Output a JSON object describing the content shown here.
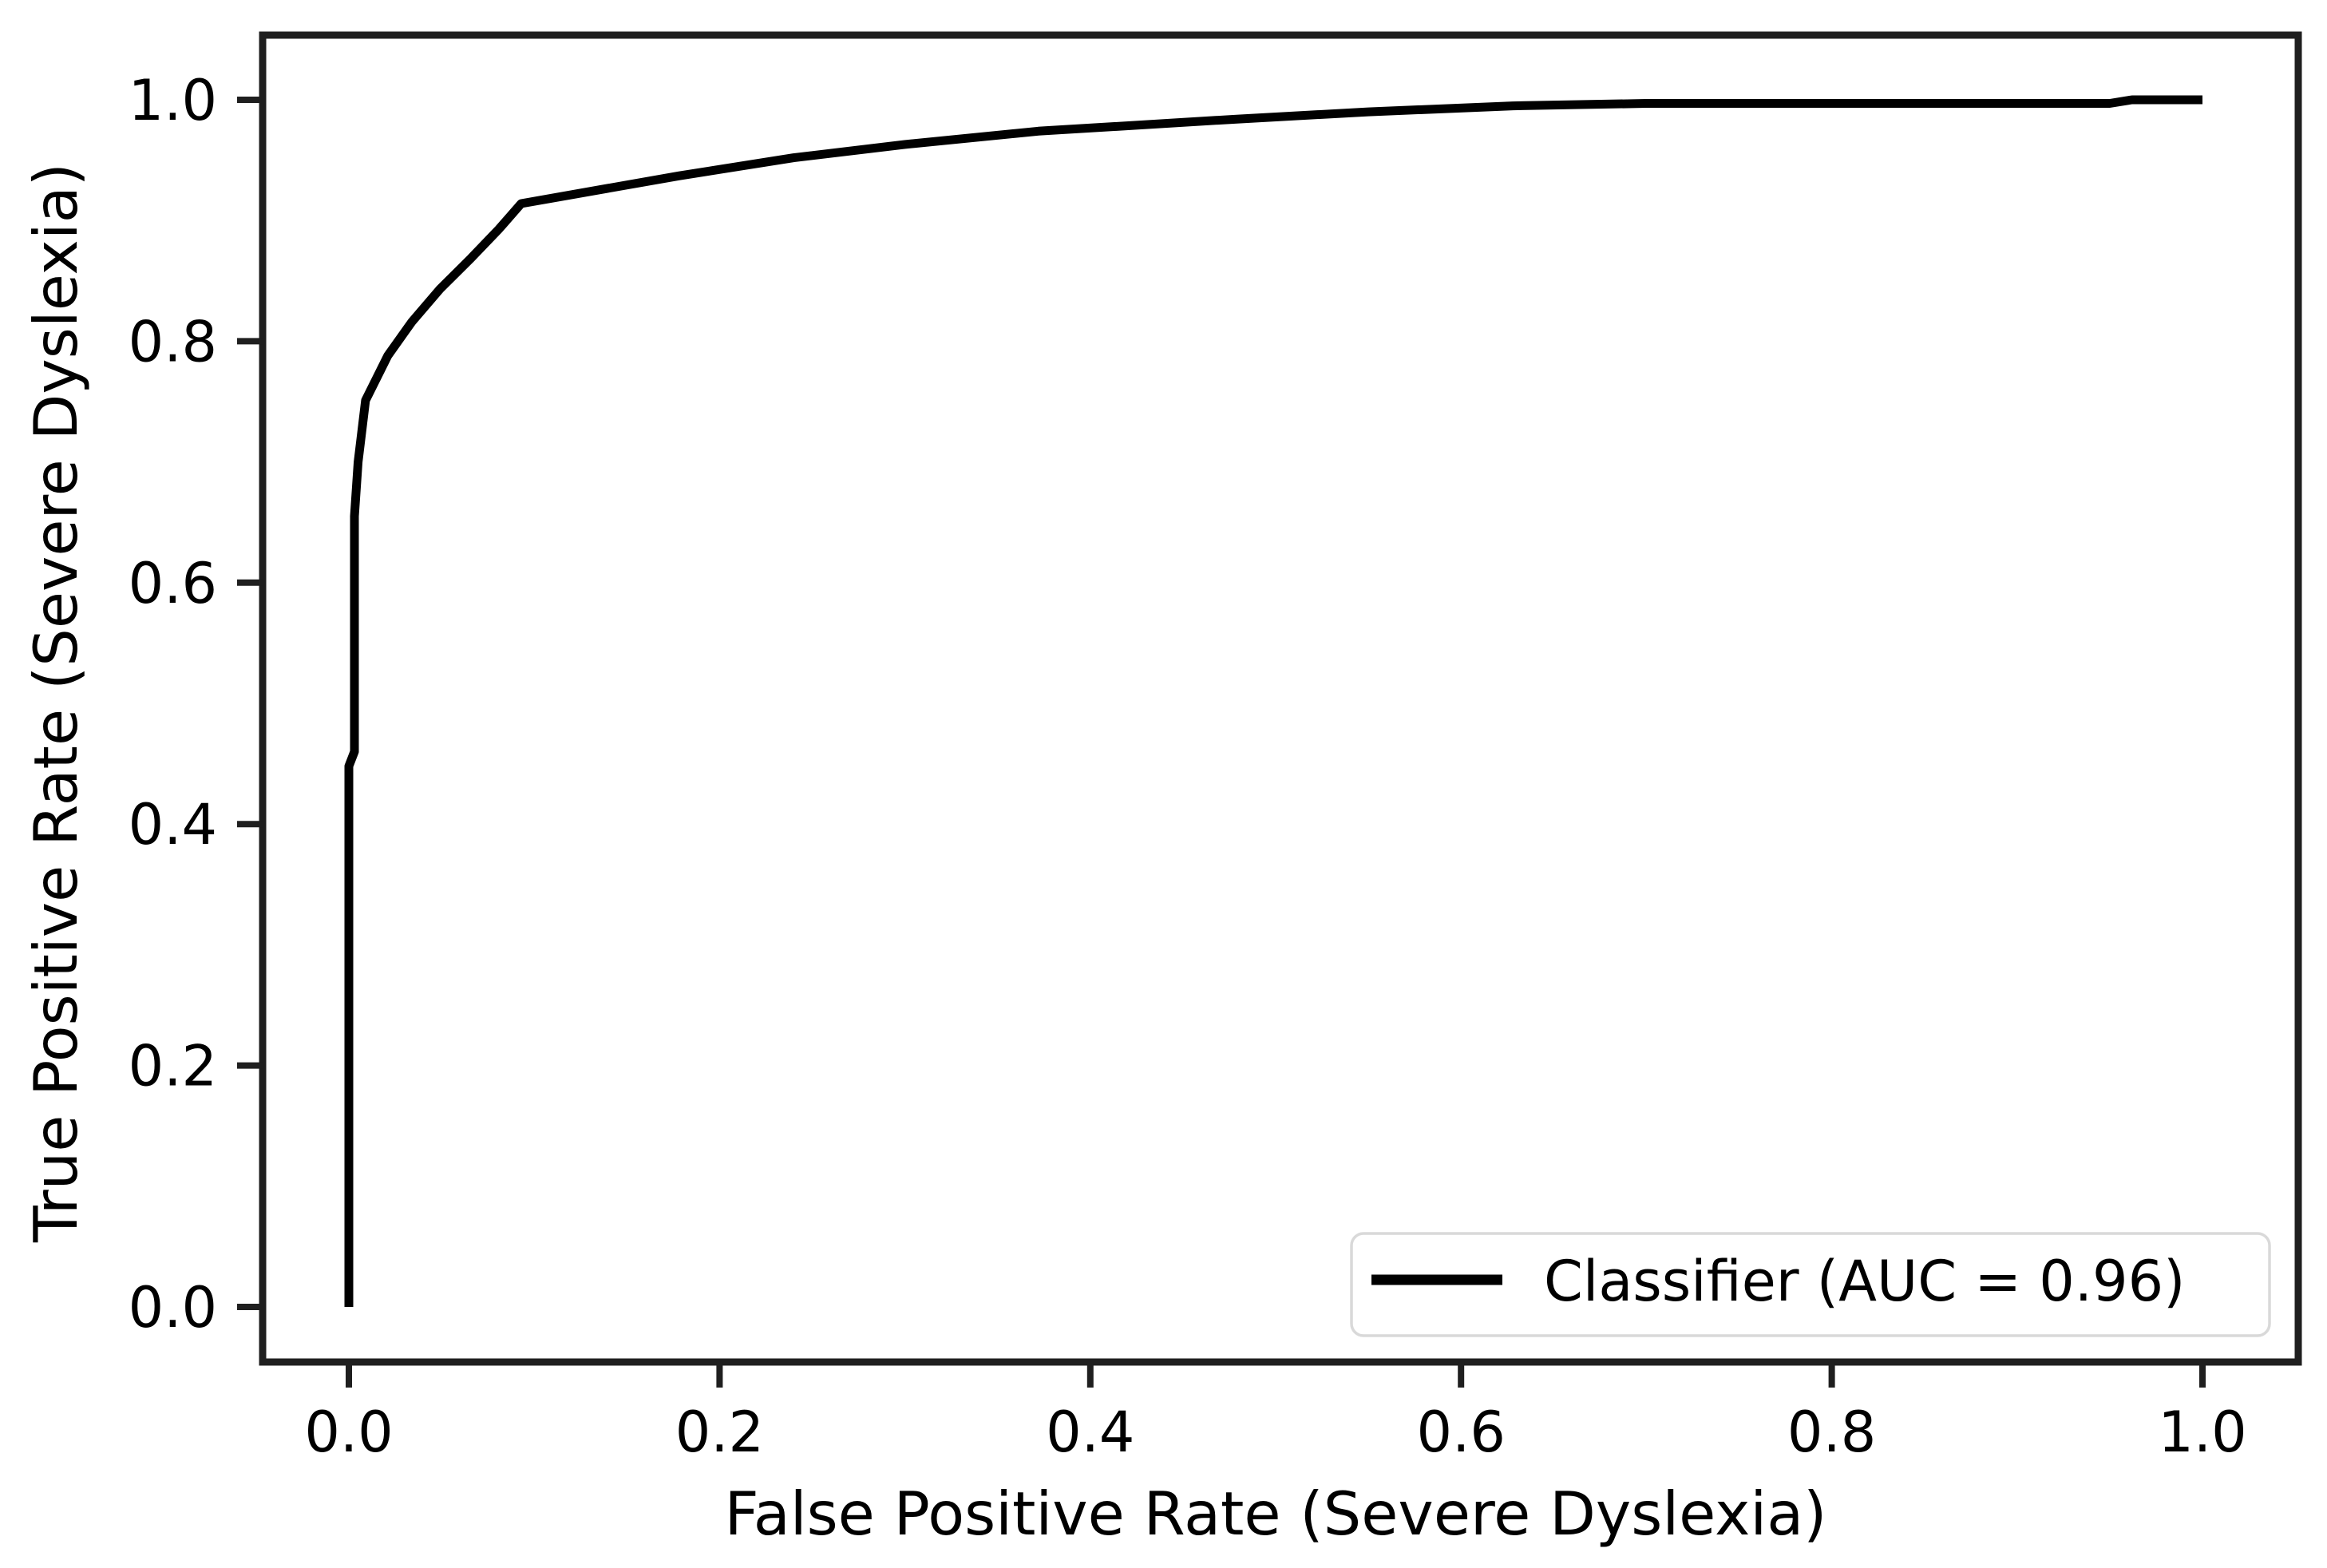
{
  "figure": {
    "background_color": "#ffffff",
    "spine_color": "#1f1f1f",
    "text_color": "#000000",
    "curve_color": "#000000",
    "legend": {
      "label": "Classifier (AUC = 0.96)",
      "auc": "0.96",
      "position": "lower right",
      "border_color": "#d9d9d9",
      "background_color": "#ffffff",
      "swatch_color": "#000000"
    }
  },
  "chart_data": {
    "type": "line",
    "title": "",
    "xlabel": "False Positive Rate (Severe Dyslexia)",
    "ylabel": "True Positive Rate (Severe Dyslexia)",
    "xlim": [
      0.0,
      1.0
    ],
    "ylim": [
      0.0,
      1.0
    ],
    "x_ticks": [
      "0.0",
      "0.2",
      "0.4",
      "0.6",
      "0.8",
      "1.0"
    ],
    "y_ticks": [
      "0.0",
      "0.2",
      "0.4",
      "0.6",
      "0.8",
      "1.0"
    ],
    "grid": false,
    "legend_position": "lower right",
    "series": [
      {
        "name": "Classifier (AUC = 0.96)",
        "color": "#000000",
        "points": [
          [
            0.0,
            0.0
          ],
          [
            0.0,
            0.448
          ],
          [
            0.003,
            0.46
          ],
          [
            0.003,
            0.655
          ],
          [
            0.005,
            0.7
          ],
          [
            0.009,
            0.751
          ],
          [
            0.021,
            0.788
          ],
          [
            0.034,
            0.816
          ],
          [
            0.049,
            0.843
          ],
          [
            0.066,
            0.869
          ],
          [
            0.081,
            0.893
          ],
          [
            0.093,
            0.914
          ],
          [
            0.178,
            0.937
          ],
          [
            0.24,
            0.952
          ],
          [
            0.3,
            0.963
          ],
          [
            0.372,
            0.974
          ],
          [
            0.479,
            0.984
          ],
          [
            0.55,
            0.99
          ],
          [
            0.628,
            0.995
          ],
          [
            0.7,
            0.997
          ],
          [
            0.85,
            0.997
          ],
          [
            0.95,
            0.997
          ],
          [
            0.962,
            1.0
          ],
          [
            1.0,
            1.0
          ]
        ]
      }
    ]
  }
}
